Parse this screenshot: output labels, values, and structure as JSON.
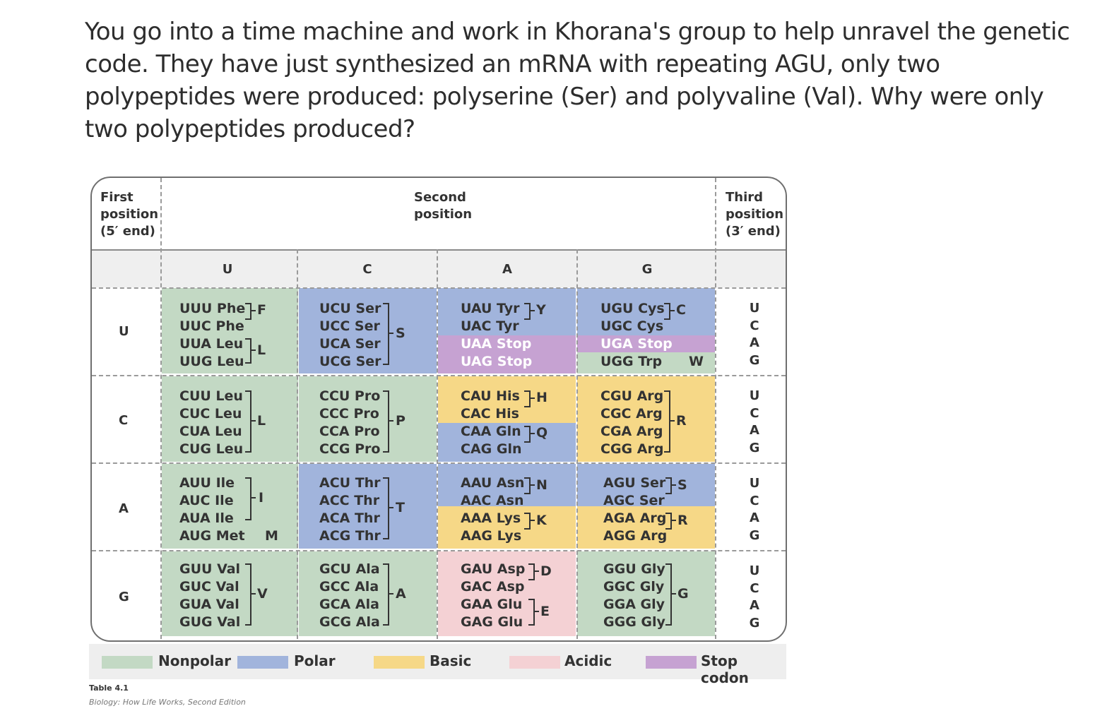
{
  "question": {
    "line1": "You go into a time machine and work in Khorana's group to help unravel the genetic",
    "line2": "code. They have just synthesized an mRNA with repeating AGU, only two",
    "line3": "polypeptides were produced: polyserine (Ser) and polyvaline (Val). Why were only",
    "line4": "two polypeptides produced?"
  },
  "table": {
    "first_header": [
      "First",
      "position",
      "(5′ end)"
    ],
    "second_header": [
      "Second",
      "position"
    ],
    "third_header": [
      "Third",
      "position",
      "(3′ end)"
    ],
    "bases": [
      "U",
      "C",
      "A",
      "G"
    ],
    "codons": {
      "UU": [
        "UUU Phe",
        "UUC Phe",
        "UUA Leu",
        "UUG Leu"
      ],
      "UC": [
        "UCU Ser",
        "UCC Ser",
        "UCA Ser",
        "UCG Ser"
      ],
      "UA": [
        "UAU Tyr",
        "UAC Tyr",
        "UAA Stop",
        "UAG Stop"
      ],
      "UG": [
        "UGU Cys",
        "UGC Cys",
        "UGA Stop",
        "UGG Trp"
      ],
      "CU": [
        "CUU Leu",
        "CUC Leu",
        "CUA Leu",
        "CUG Leu"
      ],
      "CC": [
        "CCU Pro",
        "CCC Pro",
        "CCA Pro",
        "CCG Pro"
      ],
      "CA": [
        "CAU His",
        "CAC His",
        "CAA Gln",
        "CAG Gln"
      ],
      "CG": [
        "CGU Arg",
        "CGC Arg",
        "CGA Arg",
        "CGG Arg"
      ],
      "AU": [
        "AUU Ile",
        "AUC Ile",
        "AUA Ile",
        "AUG Met"
      ],
      "AC": [
        "ACU Thr",
        "ACC Thr",
        "ACA Thr",
        "ACG Thr"
      ],
      "AA": [
        "AAU Asn",
        "AAC Asn",
        "AAA Lys",
        "AAG Lys"
      ],
      "AG": [
        "AGU Ser",
        "AGC Ser",
        "AGA Arg",
        "AGG Arg"
      ],
      "GU": [
        "GUU Val",
        "GUC Val",
        "GUA Val",
        "GUG Val"
      ],
      "GC": [
        "GCU Ala",
        "GCC Ala",
        "GCA Ala",
        "GCG Ala"
      ],
      "GA": [
        "GAU Asp",
        "GAC Asp",
        "GAA Glu",
        "GAG Glu"
      ],
      "GG": [
        "GGU Gly",
        "GGC Gly",
        "GGA Gly",
        "GGG Gly"
      ]
    },
    "one_letter": {
      "F": "F",
      "L": "L",
      "S": "S",
      "Y": "Y",
      "C": "C",
      "W": "W",
      "P": "P",
      "H": "H",
      "Q": "Q",
      "R": "R",
      "I": "I",
      "M": "M",
      "T": "T",
      "N": "N",
      "K": "K",
      "V": "V",
      "A": "A",
      "D": "D",
      "E": "E",
      "G": "G"
    }
  },
  "legend": {
    "nonpolar": "Nonpolar",
    "polar": "Polar",
    "basic": "Basic",
    "acidic": "Acidic",
    "stop": "Stop codon",
    "colors": {
      "nonpolar": "#c3d9c4",
      "polar": "#a1b4dc",
      "basic": "#f6d887",
      "acidic": "#f4d1d4",
      "stop": "#c6a2d2"
    }
  },
  "caption": {
    "table_label": "Table 4.1",
    "source": "Biology: How Life Works, Second Edition"
  }
}
